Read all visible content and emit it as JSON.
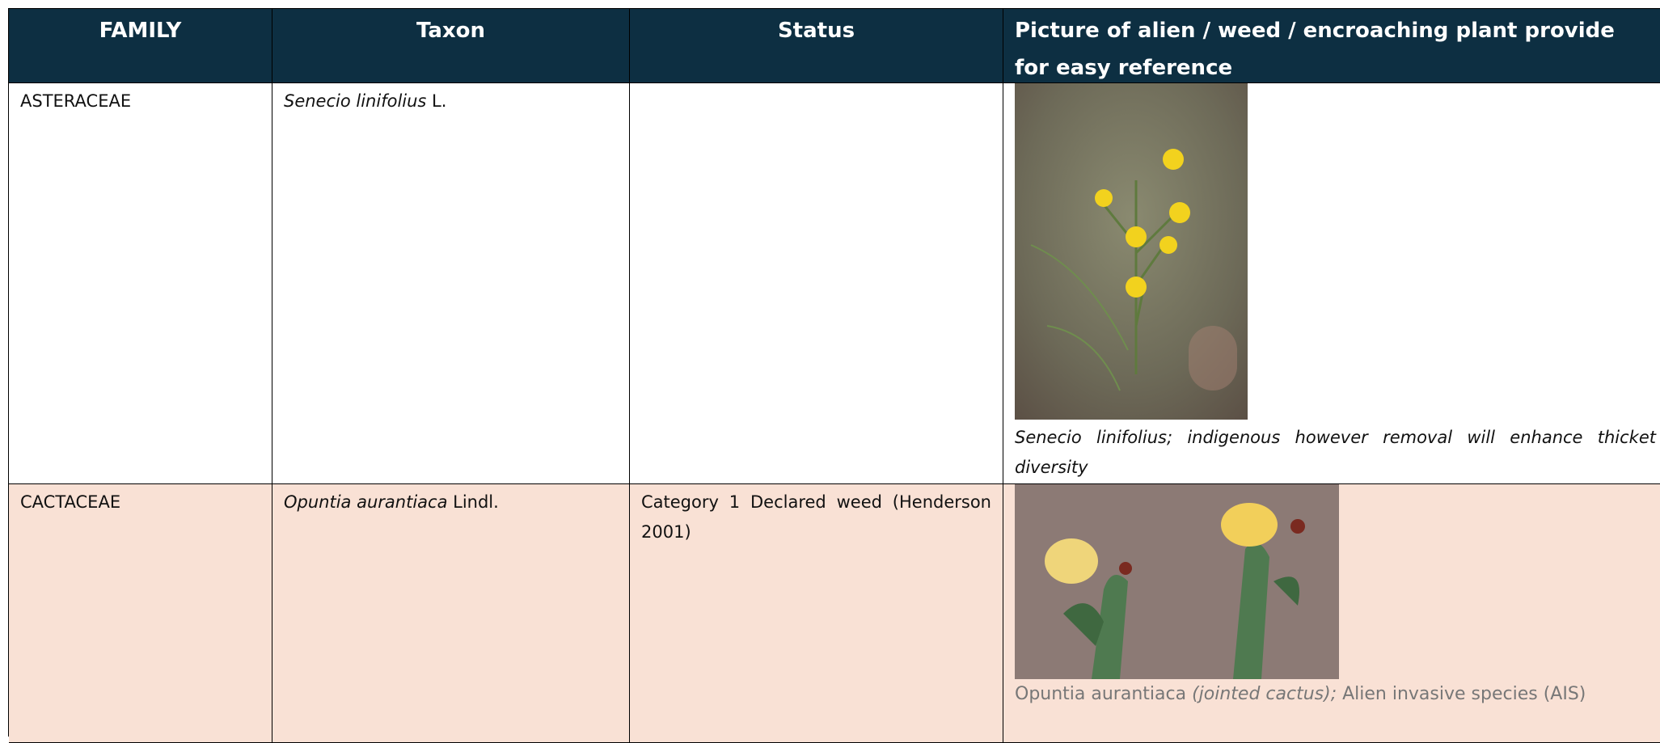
{
  "table": {
    "header": [
      "FAMILY",
      "Taxon",
      "Status",
      "Picture of alien / weed / encroaching plant provide for easy reference"
    ],
    "rows": [
      {
        "family": "ASTERACEAE",
        "taxon": {
          "name": "Senecio linifolius",
          "author": "L."
        },
        "caption": {
          "text": "Senecio linifolius; indigenous however removal will enhance thicket diversity"
        }
      },
      {
        "family": "CACTACEAE",
        "taxon": {
          "name": "Opuntia aurantiaca",
          "author": "Lindl."
        },
        "status": "Category 1 Declared weed (Henderson 2001)",
        "caption": {
          "name": "Opuntia aurantiaca",
          "common": "(jointed cactus);",
          "note": "Alien invasive species (AIS)"
        }
      }
    ]
  }
}
